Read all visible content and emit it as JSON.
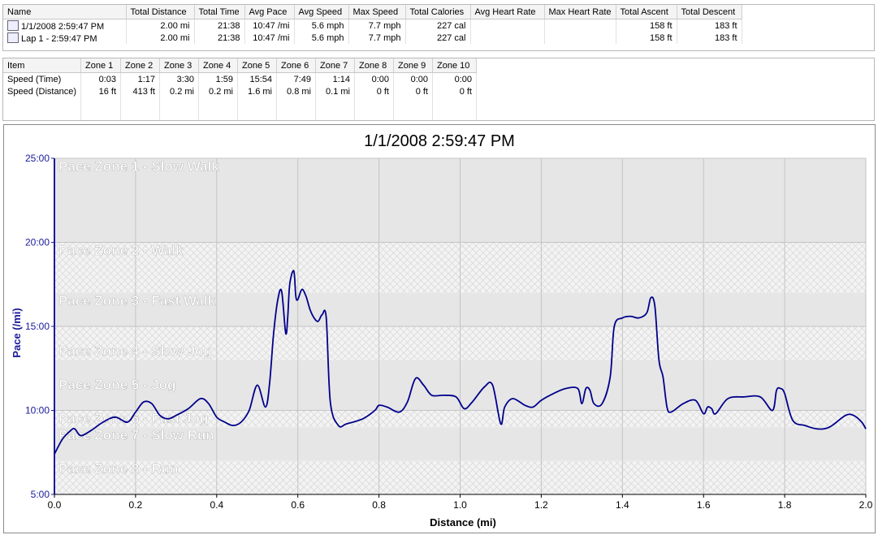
{
  "summary": {
    "columns": [
      "Name",
      "Total Distance",
      "Total Time",
      "Avg Pace",
      "Avg Speed",
      "Max Speed",
      "Total Calories",
      "Avg Heart Rate",
      "Max Heart Rate",
      "Total Ascent",
      "Total Descent"
    ],
    "rows": [
      {
        "icon": "run-activity-icon",
        "cells": [
          "1/1/2008 2:59:47 PM",
          "2.00 mi",
          "21:38",
          "10:47 /mi",
          "5.6 mph",
          "7.7 mph",
          "227 cal",
          "",
          "",
          "158 ft",
          "183 ft"
        ]
      },
      {
        "icon": "lap-icon",
        "cells": [
          "Lap 1 - 2:59:47 PM",
          "2.00 mi",
          "21:38",
          "10:47 /mi",
          "5.6 mph",
          "7.7 mph",
          "227 cal",
          "",
          "",
          "158 ft",
          "183 ft"
        ]
      }
    ]
  },
  "zones": {
    "columns": [
      "Item",
      "Zone 1",
      "Zone 2",
      "Zone 3",
      "Zone 4",
      "Zone 5",
      "Zone 6",
      "Zone 7",
      "Zone 8",
      "Zone 9",
      "Zone 10"
    ],
    "rows": [
      [
        "Speed (Time)",
        "0:03",
        "1:17",
        "3:30",
        "1:59",
        "15:54",
        "7:49",
        "1:14",
        "0:00",
        "0:00",
        "0:00"
      ],
      [
        "Speed (Distance)",
        "16 ft",
        "413 ft",
        "0.2 mi",
        "0.2 mi",
        "1.6 mi",
        "0.8 mi",
        "0.1 mi",
        "0 ft",
        "0 ft",
        "0 ft"
      ]
    ]
  },
  "chart_data": {
    "type": "line",
    "title": "1/1/2008 2:59:47 PM",
    "xlabel": "Distance (mi)",
    "ylabel": "Pace (/mi)",
    "xlim": [
      0,
      2.0
    ],
    "ylim": [
      5,
      25
    ],
    "xticks": [
      "0.0",
      "0.2",
      "0.4",
      "0.6",
      "0.8",
      "1.0",
      "1.2",
      "1.4",
      "1.6",
      "1.8",
      "2.0"
    ],
    "yticks": [
      "5:00",
      "10:00",
      "15:00",
      "20:00",
      "25:00"
    ],
    "grid": true,
    "line_color": "#00008b",
    "zones": [
      {
        "name": "Pace Zone 1 - Slow Walk",
        "label_at": 24.5,
        "from": 20,
        "to": 25,
        "fill": "solid"
      },
      {
        "name": "Pace Zone 2 - Walk",
        "label_at": 19.5,
        "from": 17,
        "to": 20,
        "fill": "hatch"
      },
      {
        "name": "Pace Zone 3 - Fast Walk",
        "label_at": 16.5,
        "from": 15,
        "to": 17,
        "fill": "solid"
      },
      {
        "name": "Pace Zone 4 - Slow Jog",
        "label_at": 13.5,
        "from": 13,
        "to": 15,
        "fill": "hatch"
      },
      {
        "name": "Pace Zone 5 - Jog",
        "label_at": 11.5,
        "from": 10,
        "to": 13,
        "fill": "solid"
      },
      {
        "name": "Pace Zone 6 - Fast Jog",
        "label_at": 9.5,
        "from": 9,
        "to": 10,
        "fill": "hatch"
      },
      {
        "name": "Pace Zone 7 - Slow Run",
        "label_at": 8.5,
        "from": 7,
        "to": 9,
        "fill": "solid"
      },
      {
        "name": "Pace Zone 8 - Run",
        "label_at": 6.5,
        "from": 5,
        "to": 7,
        "fill": "hatch"
      }
    ],
    "series": [
      {
        "x": [
          0.0,
          0.02,
          0.04,
          0.05,
          0.065,
          0.09,
          0.12,
          0.15,
          0.18,
          0.2,
          0.22,
          0.24,
          0.26,
          0.28,
          0.3,
          0.33,
          0.36,
          0.38,
          0.4,
          0.42,
          0.44,
          0.46,
          0.48,
          0.5,
          0.52,
          0.53,
          0.54,
          0.55,
          0.56,
          0.57,
          0.575,
          0.58,
          0.59,
          0.595,
          0.6,
          0.61,
          0.62,
          0.63,
          0.64,
          0.65,
          0.66,
          0.67,
          0.68,
          0.7,
          0.72,
          0.76,
          0.79,
          0.8,
          0.82,
          0.85,
          0.87,
          0.89,
          0.91,
          0.93,
          0.96,
          0.99,
          1.01,
          1.03,
          1.06,
          1.08,
          1.1,
          1.11,
          1.13,
          1.16,
          1.18,
          1.2,
          1.23,
          1.26,
          1.29,
          1.3,
          1.31,
          1.32,
          1.33,
          1.35,
          1.37,
          1.38,
          1.4,
          1.42,
          1.44,
          1.46,
          1.47,
          1.48,
          1.49,
          1.5,
          1.51,
          1.52,
          1.55,
          1.58,
          1.6,
          1.61,
          1.62,
          1.63,
          1.66,
          1.7,
          1.74,
          1.77,
          1.78,
          1.79,
          1.8,
          1.82,
          1.85,
          1.88,
          1.91,
          1.95,
          1.97,
          1.99,
          2.0
        ],
        "y": [
          7.4,
          8.3,
          8.8,
          8.9,
          8.5,
          8.8,
          9.3,
          9.6,
          9.3,
          9.9,
          10.5,
          10.4,
          9.7,
          9.5,
          9.7,
          10.1,
          10.7,
          10.4,
          9.6,
          9.3,
          9.1,
          9.3,
          10.0,
          11.5,
          10.2,
          11.5,
          14.5,
          16.5,
          17.1,
          14.6,
          15.5,
          17.5,
          18.3,
          16.8,
          16.6,
          17.2,
          16.8,
          16.0,
          15.5,
          15.3,
          15.7,
          15.5,
          10.5,
          9.1,
          9.2,
          9.5,
          10.0,
          10.3,
          10.2,
          9.9,
          10.5,
          11.9,
          11.5,
          10.9,
          10.9,
          10.8,
          10.1,
          10.5,
          11.4,
          11.5,
          9.2,
          10.2,
          10.7,
          10.3,
          10.2,
          10.6,
          11.0,
          11.3,
          11.3,
          10.4,
          11.3,
          11.2,
          10.4,
          10.4,
          12.0,
          15.0,
          15.5,
          15.6,
          15.5,
          15.8,
          16.7,
          16.2,
          13.0,
          12.0,
          10.2,
          9.9,
          10.4,
          10.6,
          9.8,
          10.2,
          10.1,
          9.8,
          10.7,
          10.8,
          10.8,
          10.0,
          11.2,
          11.3,
          11.0,
          9.4,
          9.1,
          8.9,
          9.0,
          9.7,
          9.7,
          9.3,
          8.9
        ]
      }
    ]
  }
}
